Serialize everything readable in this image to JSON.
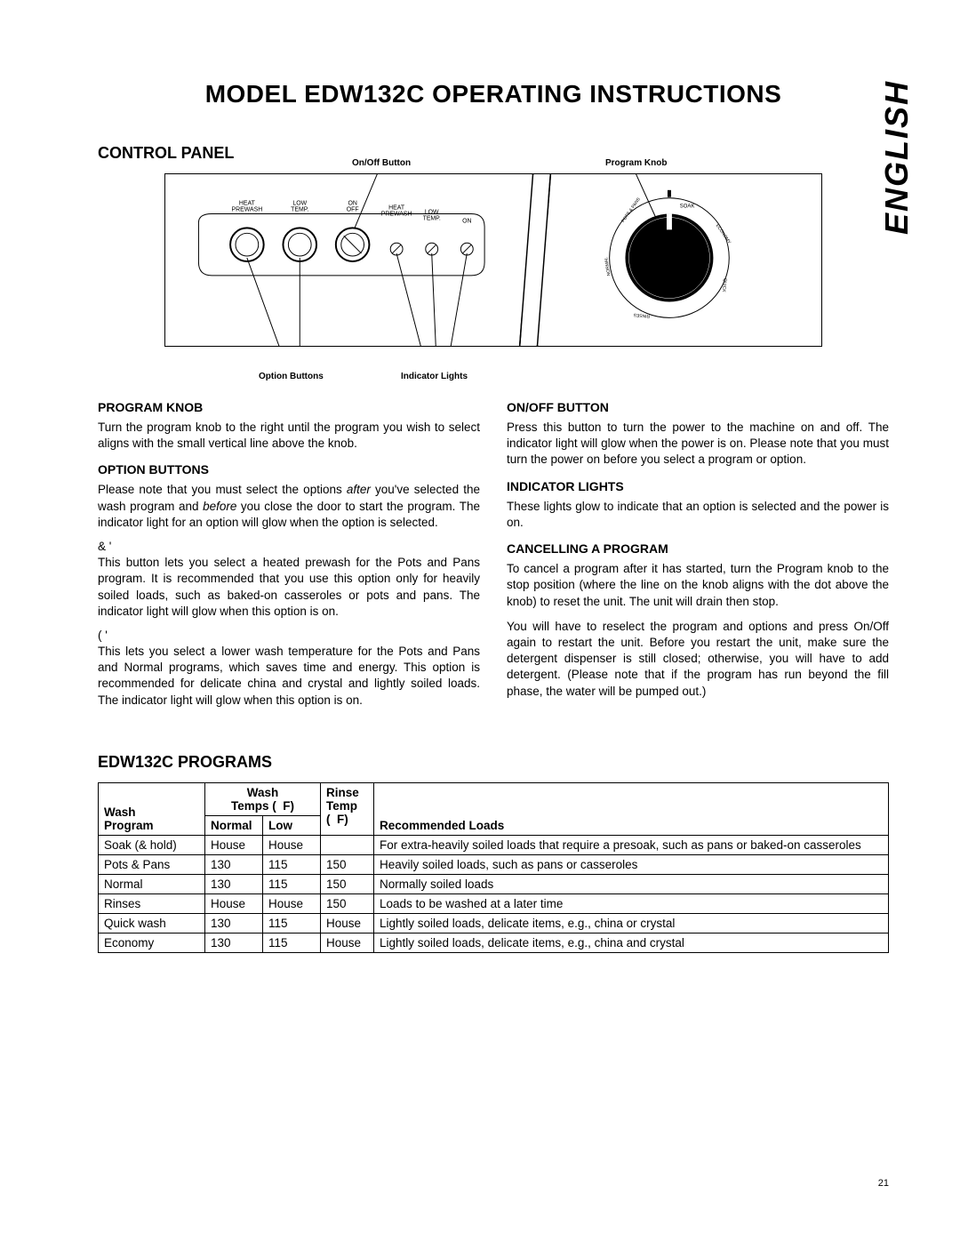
{
  "page": {
    "title": "MODEL EDW132C OPERATING INSTRUCTIONS",
    "language_tab": "ENGLISH",
    "page_number": "21"
  },
  "control_panel": {
    "heading": "CONTROL PANEL",
    "callouts": {
      "onoff_button": "On/Off Button",
      "program_knob": "Program Knob",
      "option_buttons": "Option Buttons",
      "indicator_lights": "Indicator Lights"
    },
    "panel_labels": {
      "heat_prewash1": "HEAT",
      "heat_prewash2": "PREWASH",
      "low_temp1": "LOW",
      "low_temp2": "TEMP.",
      "on1": "ON",
      "off1": "OFF",
      "heat_prewash_b1": "HEAT",
      "heat_prewash_b2": "PREWASH",
      "low_temp_b1": "LOW",
      "low_temp_b2": "TEMP.",
      "on2": "ON"
    },
    "knob_labels": {
      "soak": "SOAK",
      "pots": "POTS & PANS",
      "normal": "NORMAL",
      "rinses": "RINSES",
      "quick": "QUICK",
      "economy": "ECONOMY"
    }
  },
  "left_column": {
    "program_knob": {
      "heading": "PROGRAM KNOB",
      "text": "Turn the program knob to the right until the program you wish to select aligns with the small vertical line above the knob."
    },
    "option_buttons": {
      "heading": "OPTION BUTTONS",
      "intro_pre": "Please note that you must select the options ",
      "intro_after": "after",
      "intro_mid": " you've selected the wash program and ",
      "intro_before": "before",
      "intro_post": " you close the door to start the program. The indicator light for an option will glow when the option is selected.",
      "opt1_label": "&     '",
      "opt1_text": "This button lets you select a heated prewash for the Pots and Pans program. It is recommended that you use this option only for heavily soiled loads, such as baked-on casseroles or pots and pans. The indicator light will glow when this option is on.",
      "opt2_label": "( '",
      "opt2_text": "This lets you select a lower wash temperature for the Pots and Pans and Normal programs, which saves time and energy. This option is recommended for delicate china and crystal and lightly soiled loads. The indicator light will glow when this option is on."
    }
  },
  "right_column": {
    "onoff": {
      "heading": "ON/OFF BUTTON",
      "text": "Press this button to turn the power to the machine on and off. The indicator light will glow when the power is on. Please note that you must turn the power on before you select a program or option."
    },
    "indicator": {
      "heading": "INDICATOR LIGHTS",
      "text": "These lights glow to indicate that an option is selected and the power is on."
    },
    "cancelling": {
      "heading": "CANCELLING A PROGRAM",
      "p1": "To cancel a program after it has started, turn the Program knob to the  stop position  (where the line on the knob aligns with the dot above the knob) to reset the unit. The unit will drain then stop.",
      "p2": "You will have to reselect the program and options and press On/Off again to restart the unit. Before you restart the unit, make sure the detergent dispenser is still closed; otherwise, you will have to add detergent. (Please note that if the program has run beyond the fill phase, the water will be pumped out.)"
    }
  },
  "programs": {
    "heading": "EDW132C PROGRAMS",
    "headers": {
      "wash_program": "Wash Program",
      "wash_temps": "Wash Temps (  F)",
      "normal": "Normal",
      "low": "Low",
      "rinse_temp": "Rinse Temp (  F)",
      "recommended": "Recommended Loads"
    },
    "rows": [
      {
        "program": "Soak (& hold)",
        "normal": "House",
        "low": "House",
        "rinse": "",
        "rec": "For extra-heavily soiled loads that require a presoak, such as pans or baked-on casseroles"
      },
      {
        "program": "Pots & Pans",
        "normal": "130",
        "low": "115",
        "rinse": "150",
        "rec": "Heavily soiled loads, such as pans or casseroles"
      },
      {
        "program": "Normal",
        "normal": "130",
        "low": "115",
        "rinse": "150",
        "rec": "Normally soiled loads"
      },
      {
        "program": "Rinses",
        "normal": "House",
        "low": "House",
        "rinse": "150",
        "rec": "Loads to be washed at a later time"
      },
      {
        "program": "Quick wash",
        "normal": "130",
        "low": "115",
        "rinse": "House",
        "rec": "Lightly soiled loads, delicate items, e.g., china or crystal"
      },
      {
        "program": "Economy",
        "normal": "130",
        "low": "115",
        "rinse": "House",
        "rec": "Lightly soiled loads, delicate items, e.g., china and crystal"
      }
    ]
  }
}
